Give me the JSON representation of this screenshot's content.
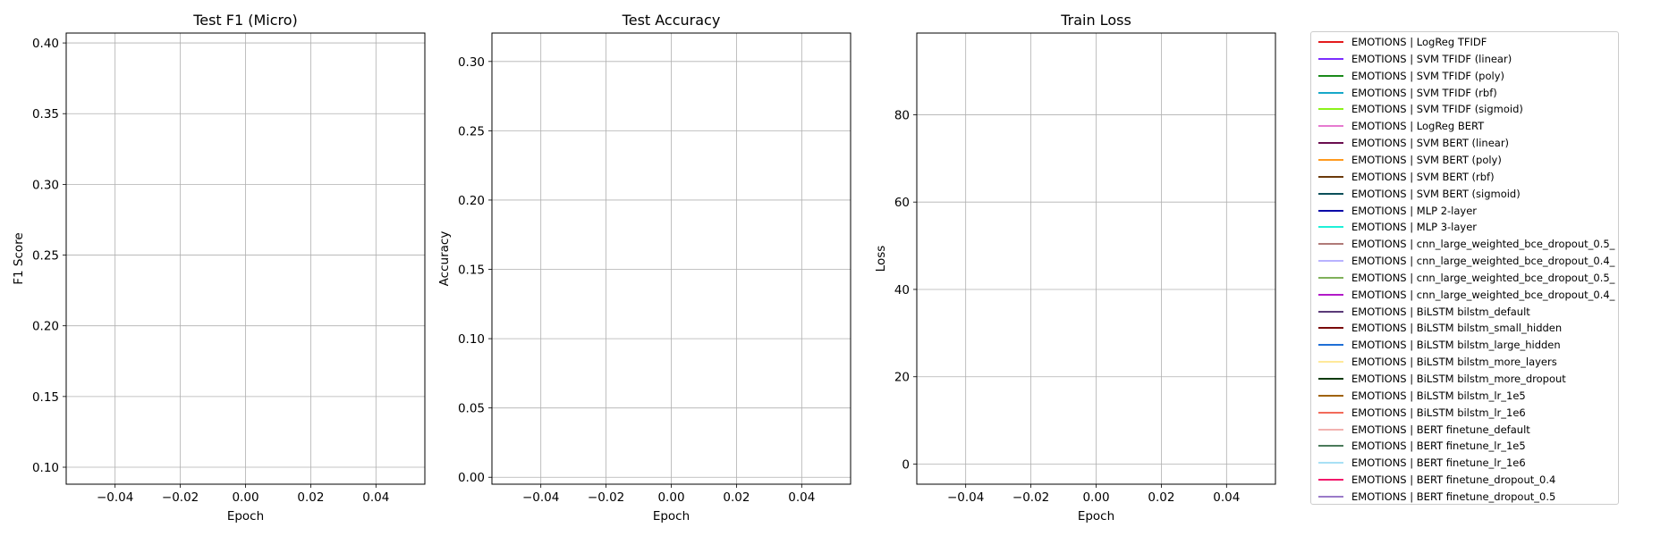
{
  "chart_data": [
    {
      "type": "line",
      "title": "Test F1 (Micro)",
      "xlabel": "Epoch",
      "ylabel": "F1 Score",
      "xlim": [
        -0.055,
        0.055
      ],
      "ylim": [
        0.088,
        0.407
      ],
      "xticks": [
        -0.04,
        -0.02,
        0.0,
        0.02,
        0.04
      ],
      "xtick_labels": [
        "−0.04",
        "−0.02",
        "0.00",
        "0.02",
        "0.04"
      ],
      "yticks": [
        0.1,
        0.15,
        0.2,
        0.25,
        0.3,
        0.35,
        0.4
      ],
      "ytick_labels": [
        "0.10",
        "0.15",
        "0.20",
        "0.25",
        "0.30",
        "0.35",
        "0.40"
      ],
      "grid": true,
      "series": []
    },
    {
      "type": "line",
      "title": "Test Accuracy",
      "xlabel": "Epoch",
      "ylabel": "Accuracy",
      "xlim": [
        -0.055,
        0.055
      ],
      "ylim": [
        -0.005,
        0.3205
      ],
      "xticks": [
        -0.04,
        -0.02,
        0.0,
        0.02,
        0.04
      ],
      "xtick_labels": [
        "−0.04",
        "−0.02",
        "0.00",
        "0.02",
        "0.04"
      ],
      "yticks": [
        0.0,
        0.05,
        0.1,
        0.15,
        0.2,
        0.25,
        0.3
      ],
      "ytick_labels": [
        "0.00",
        "0.05",
        "0.10",
        "0.15",
        "0.20",
        "0.25",
        "0.30"
      ],
      "grid": true,
      "series": []
    },
    {
      "type": "line",
      "title": "Train Loss",
      "xlabel": "Epoch",
      "ylabel": "Loss",
      "xlim": [
        -0.055,
        0.055
      ],
      "ylim": [
        -4.6,
        98.7
      ],
      "xticks": [
        -0.04,
        -0.02,
        0.0,
        0.02,
        0.04
      ],
      "xtick_labels": [
        "−0.04",
        "−0.02",
        "0.00",
        "0.02",
        "0.04"
      ],
      "yticks": [
        0,
        20,
        40,
        60,
        80
      ],
      "ytick_labels": [
        "0",
        "20",
        "40",
        "60",
        "80"
      ],
      "grid": true,
      "series": []
    }
  ],
  "legend": {
    "placement": "outside-right",
    "entries": [
      {
        "label": "EMOTIONS | LogReg TFIDF",
        "color": "#e41a1c"
      },
      {
        "label": "EMOTIONS | SVM TFIDF (linear)",
        "color": "#7b2cff"
      },
      {
        "label": "EMOTIONS | SVM TFIDF (poly)",
        "color": "#1a8a1a"
      },
      {
        "label": "EMOTIONS | SVM TFIDF (rbf)",
        "color": "#17a8c9"
      },
      {
        "label": "EMOTIONS | SVM TFIDF (sigmoid)",
        "color": "#8cf21a"
      },
      {
        "label": "EMOTIONS | LogReg BERT",
        "color": "#e67ad0"
      },
      {
        "label": "EMOTIONS | SVM BERT (linear)",
        "color": "#6a0d4f"
      },
      {
        "label": "EMOTIONS | SVM BERT (poly)",
        "color": "#ff9a1f"
      },
      {
        "label": "EMOTIONS | SVM BERT (rbf)",
        "color": "#6b3a0a"
      },
      {
        "label": "EMOTIONS | SVM BERT (sigmoid)",
        "color": "#0b4f5a"
      },
      {
        "label": "EMOTIONS | MLP 2-layer",
        "color": "#0a0aa8"
      },
      {
        "label": "EMOTIONS | MLP 3-layer",
        "color": "#1ff0d8"
      },
      {
        "label": "EMOTIONS | cnn_large_weighted_bce_dropout_0.5_",
        "color": "#b07a78"
      },
      {
        "label": "EMOTIONS | cnn_large_weighted_bce_dropout_0.4_",
        "color": "#b8b2ff"
      },
      {
        "label": "EMOTIONS | cnn_large_weighted_bce_dropout_0.5_",
        "color": "#7fb05a"
      },
      {
        "label": "EMOTIONS | cnn_large_weighted_bce_dropout_0.4_",
        "color": "#b21ac8"
      },
      {
        "label": "EMOTIONS | BiLSTM bilstm_default",
        "color": "#5a3a78"
      },
      {
        "label": "EMOTIONS | BiLSTM bilstm_small_hidden",
        "color": "#7a0a0a"
      },
      {
        "label": "EMOTIONS | BiLSTM bilstm_large_hidden",
        "color": "#1f6fd6"
      },
      {
        "label": "EMOTIONS | BiLSTM bilstm_more_layers",
        "color": "#ffe99a"
      },
      {
        "label": "EMOTIONS | BiLSTM bilstm_more_dropout",
        "color": "#0a3a0a"
      },
      {
        "label": "EMOTIONS | BiLSTM bilstm_lr_1e5",
        "color": "#a0620a"
      },
      {
        "label": "EMOTIONS | BiLSTM bilstm_lr_1e6",
        "color": "#f26a5a"
      },
      {
        "label": "EMOTIONS | BERT finetune_default",
        "color": "#f2b2b0"
      },
      {
        "label": "EMOTIONS | BERT finetune_lr_1e5",
        "color": "#4a7a5a"
      },
      {
        "label": "EMOTIONS | BERT finetune_lr_1e6",
        "color": "#a8e0f5"
      },
      {
        "label": "EMOTIONS | BERT finetune_dropout_0.4",
        "color": "#f2186a"
      },
      {
        "label": "EMOTIONS | BERT finetune_dropout_0.5",
        "color": "#9a7ac8"
      }
    ]
  }
}
